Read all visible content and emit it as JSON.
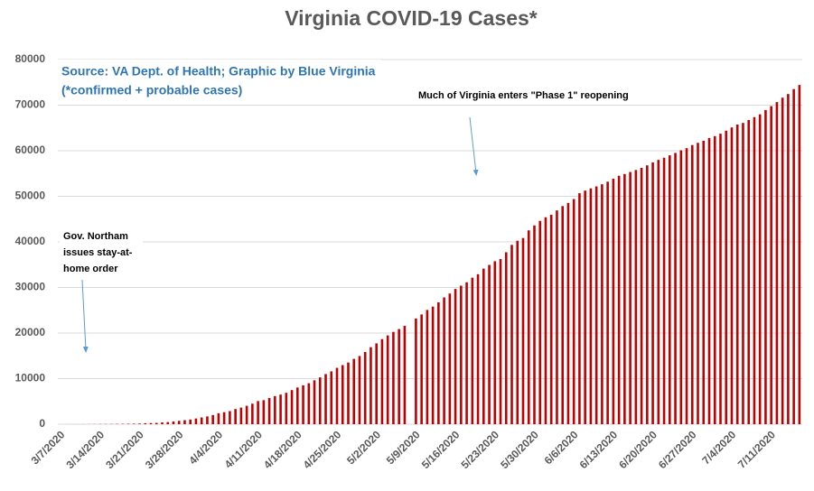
{
  "chart_data": {
    "type": "bar",
    "title": "Virginia COVID-19 Cases*",
    "source": [
      "Source: VA Dept. of Health; Graphic by Blue Virginia",
      "(*confirmed + probable cases)"
    ],
    "annotations": [
      {
        "lines": [
          "Much of Virginia enters \"Phase 1\" reopening"
        ]
      },
      {
        "lines": [
          "Gov. Northam",
          "issues stay-at-",
          "home order"
        ]
      }
    ],
    "color": "#c00000",
    "ylim": [
      0,
      80000
    ],
    "yticks": [
      0,
      10000,
      20000,
      30000,
      40000,
      50000,
      60000,
      70000,
      80000
    ],
    "grid": true,
    "categories": [
      "3/7/2020",
      null,
      null,
      null,
      null,
      null,
      null,
      "3/14/2020",
      null,
      null,
      null,
      null,
      null,
      null,
      "3/21/2020",
      null,
      null,
      null,
      null,
      null,
      null,
      "3/28/2020",
      null,
      null,
      null,
      null,
      null,
      null,
      "4/4/2020",
      null,
      null,
      null,
      null,
      null,
      null,
      "4/11/2020",
      null,
      null,
      null,
      null,
      null,
      null,
      "4/18/2020",
      null,
      null,
      null,
      null,
      null,
      null,
      "4/25/2020",
      null,
      null,
      null,
      null,
      null,
      null,
      "5/2/2020",
      null,
      null,
      null,
      null,
      null,
      null,
      "5/9/2020",
      null,
      null,
      null,
      null,
      null,
      null,
      "5/16/2020",
      null,
      null,
      null,
      null,
      null,
      null,
      "5/23/2020",
      null,
      null,
      null,
      null,
      null,
      null,
      "5/30/2020",
      null,
      null,
      null,
      null,
      null,
      null,
      "6/6/2020",
      null,
      null,
      null,
      null,
      null,
      null,
      "6/13/2020",
      null,
      null,
      null,
      null,
      null,
      null,
      "6/20/2020",
      null,
      null,
      null,
      null,
      null,
      null,
      "6/27/2020",
      null,
      null,
      null,
      null,
      null,
      null,
      "7/4/2020",
      null,
      null,
      null,
      null,
      null,
      null,
      "7/11/2020",
      null,
      null,
      null,
      null,
      null
    ],
    "values": [
      1,
      2,
      2,
      5,
      9,
      17,
      30,
      41,
      45,
      51,
      67,
      77,
      99,
      114,
      152,
      219,
      254,
      290,
      391,
      460,
      604,
      739,
      890,
      1020,
      1250,
      1484,
      1706,
      2012,
      2407,
      2637,
      2878,
      3333,
      3645,
      4042,
      4509,
      5077,
      5274,
      5747,
      6171,
      6500,
      6889,
      7491,
      8053,
      8537,
      8990,
      9630,
      10266,
      10998,
      11594,
      12366,
      12970,
      13535,
      14339,
      14961,
      15846,
      16901,
      17731,
      18671,
      19492,
      20256,
      20878,
      21570,
      null,
      23196,
      24081,
      25070,
      25800,
      26746,
      27813,
      28672,
      29683,
      30388,
      31140,
      32145,
      32908,
      34137,
      34950,
      35749,
      36244,
      37727,
      39342,
      40249,
      40849,
      42533,
      43611,
      44607,
      45398,
      45960,
      46905,
      47856,
      48532,
      49397,
      50681,
      51251,
      51738,
      52177,
      52647,
      53211,
      53869,
      54506,
      54886,
      55331,
      55775,
      56238,
      56793,
      57443,
      57994,
      58465,
      58994,
      59514,
      60102,
      60570,
      61247,
      61736,
      62189,
      62787,
      63203,
      63735,
      64393,
      65109,
      65748,
      66102,
      66740,
      67375,
      67988,
      68931,
      69782,
      70670,
      71642,
      72443,
      73527,
      74431
    ]
  }
}
